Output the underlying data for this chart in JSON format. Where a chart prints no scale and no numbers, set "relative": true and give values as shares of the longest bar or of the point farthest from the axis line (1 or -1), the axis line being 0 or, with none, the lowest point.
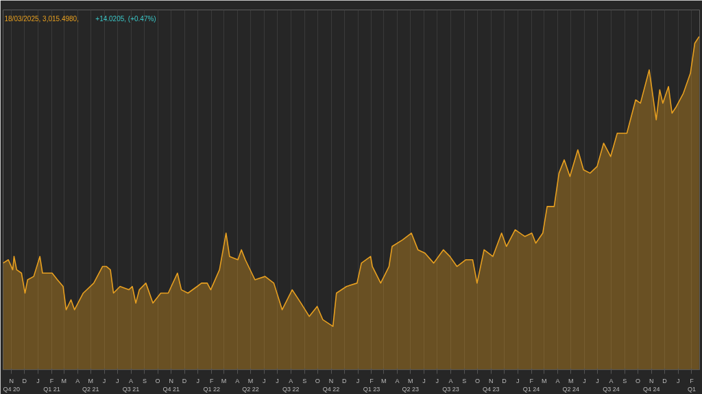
{
  "chart_data": {
    "type": "area",
    "relative": true,
    "color": "#e8a020",
    "grid": "x",
    "annotations": [
      "18/03/2025, 3,015.4980,",
      "+14.0205, (+0.47%)"
    ],
    "xlim": [
      "2020-10-27",
      "2025-03-05"
    ],
    "xticks": [
      {
        "value": "2020-11-15",
        "label": "N\nQ4 20"
      },
      {
        "value": "2020-12-15",
        "label": "D"
      },
      {
        "value": "2021-01-15",
        "label": "J"
      },
      {
        "value": "2021-02-15",
        "label": "F\nQ1 21"
      },
      {
        "value": "2021-03-15",
        "label": "M"
      },
      {
        "value": "2021-04-15",
        "label": "A"
      },
      {
        "value": "2021-05-15",
        "label": "M\nQ2 21"
      },
      {
        "value": "2021-06-15",
        "label": "J"
      },
      {
        "value": "2021-07-15",
        "label": "J"
      },
      {
        "value": "2021-08-15",
        "label": "A\nQ3 21"
      },
      {
        "value": "2021-09-15",
        "label": "S"
      },
      {
        "value": "2021-10-15",
        "label": "O"
      },
      {
        "value": "2021-11-15",
        "label": "N\nQ4 21"
      },
      {
        "value": "2021-12-15",
        "label": "D"
      },
      {
        "value": "2022-01-15",
        "label": "J"
      },
      {
        "value": "2022-02-15",
        "label": "F\nQ1 22"
      },
      {
        "value": "2022-03-15",
        "label": "M"
      },
      {
        "value": "2022-04-15",
        "label": "A"
      },
      {
        "value": "2022-05-15",
        "label": "M\nQ2 22"
      },
      {
        "value": "2022-06-15",
        "label": "J"
      },
      {
        "value": "2022-07-15",
        "label": "J"
      },
      {
        "value": "2022-08-15",
        "label": "A\nQ3 22"
      },
      {
        "value": "2022-09-15",
        "label": "S"
      },
      {
        "value": "2022-10-15",
        "label": "O"
      },
      {
        "value": "2022-11-15",
        "label": "N\nQ4 22"
      },
      {
        "value": "2022-12-15",
        "label": "D"
      },
      {
        "value": "2023-01-15",
        "label": "J"
      },
      {
        "value": "2023-02-15",
        "label": "F\nQ1 23"
      },
      {
        "value": "2023-03-15",
        "label": "M"
      },
      {
        "value": "2023-04-15",
        "label": "A"
      },
      {
        "value": "2023-05-15",
        "label": "M\nQ2 23"
      },
      {
        "value": "2023-06-15",
        "label": "J"
      },
      {
        "value": "2023-07-15",
        "label": "J"
      },
      {
        "value": "2023-08-15",
        "label": "A\nQ3 23"
      },
      {
        "value": "2023-09-15",
        "label": "S"
      },
      {
        "value": "2023-10-15",
        "label": "O"
      },
      {
        "value": "2023-11-15",
        "label": "N\nQ4 23"
      },
      {
        "value": "2023-12-15",
        "label": "D"
      },
      {
        "value": "2024-01-15",
        "label": "J"
      },
      {
        "value": "2024-02-15",
        "label": "F\nQ1 24"
      },
      {
        "value": "2024-03-15",
        "label": "M"
      },
      {
        "value": "2024-04-15",
        "label": "A"
      },
      {
        "value": "2024-05-15",
        "label": "M\nQ2 24"
      },
      {
        "value": "2024-06-15",
        "label": "J"
      },
      {
        "value": "2024-07-15",
        "label": "J"
      },
      {
        "value": "2024-08-15",
        "label": "A\nQ3 24"
      },
      {
        "value": "2024-09-15",
        "label": "S"
      },
      {
        "value": "2024-10-15",
        "label": "O"
      },
      {
        "value": "2024-11-15",
        "label": "N\nQ4 24"
      },
      {
        "value": "2024-12-15",
        "label": "D"
      },
      {
        "value": "2025-01-15",
        "label": "J"
      },
      {
        "value": "2025-02-15",
        "label": "F\nQ1"
      }
    ],
    "x": [
      "2020-10-27",
      "2020-11-08",
      "2020-11-18",
      "2020-11-21",
      "2020-11-27",
      "2020-12-08",
      "2020-12-16",
      "2020-12-22",
      "2021-01-05",
      "2021-01-19",
      "2021-01-25",
      "2021-02-16",
      "2021-02-28",
      "2021-03-13",
      "2021-03-20",
      "2021-03-31",
      "2021-04-08",
      "2021-04-28",
      "2021-05-22",
      "2021-06-11",
      "2021-06-20",
      "2021-06-29",
      "2021-07-06",
      "2021-07-21",
      "2021-08-10",
      "2021-08-18",
      "2021-08-26",
      "2021-09-03",
      "2021-09-18",
      "2021-10-04",
      "2021-10-22",
      "2021-11-08",
      "2021-11-29",
      "2021-12-08",
      "2021-12-23",
      "2022-01-13",
      "2022-01-23",
      "2022-02-05",
      "2022-02-13",
      "2022-03-05",
      "2022-03-20",
      "2022-03-28",
      "2022-04-16",
      "2022-04-24",
      "2022-05-03",
      "2022-05-25",
      "2022-06-17",
      "2022-07-07",
      "2022-07-26",
      "2022-08-18",
      "2022-09-07",
      "2022-09-26",
      "2022-10-14",
      "2022-10-27",
      "2022-11-19",
      "2022-11-27",
      "2022-12-20",
      "2023-01-13",
      "2023-01-23",
      "2023-02-13",
      "2023-02-17",
      "2023-03-08",
      "2023-03-27",
      "2023-04-03",
      "2023-04-27",
      "2023-05-17",
      "2023-06-01",
      "2023-06-17",
      "2023-07-07",
      "2023-07-29",
      "2023-08-13",
      "2023-08-29",
      "2023-09-18",
      "2023-10-04",
      "2023-10-14",
      "2023-10-30",
      "2023-11-19",
      "2023-12-09",
      "2023-12-20",
      "2024-01-09",
      "2024-01-31",
      "2024-02-16",
      "2024-02-25",
      "2024-03-12",
      "2024-03-22",
      "2024-04-07",
      "2024-04-18",
      "2024-04-30",
      "2024-05-13",
      "2024-05-31",
      "2024-06-13",
      "2024-06-28",
      "2024-07-14",
      "2024-07-29",
      "2024-08-14",
      "2024-08-29",
      "2024-09-20",
      "2024-10-10",
      "2024-10-21",
      "2024-11-10",
      "2024-11-26",
      "2024-12-04",
      "2024-12-11",
      "2024-12-24",
      "2025-01-01",
      "2025-01-11",
      "2025-01-27",
      "2025-02-12",
      "2025-02-22",
      "2025-03-04"
    ],
    "values": [
      0.32,
      0.33,
      0.3,
      0.34,
      0.3,
      0.29,
      0.23,
      0.27,
      0.28,
      0.34,
      0.29,
      0.29,
      0.27,
      0.25,
      0.18,
      0.21,
      0.18,
      0.23,
      0.26,
      0.31,
      0.31,
      0.3,
      0.23,
      0.25,
      0.24,
      0.25,
      0.2,
      0.24,
      0.26,
      0.2,
      0.23,
      0.23,
      0.29,
      0.24,
      0.23,
      0.25,
      0.26,
      0.26,
      0.24,
      0.3,
      0.41,
      0.34,
      0.33,
      0.36,
      0.33,
      0.27,
      0.28,
      0.26,
      0.18,
      0.24,
      0.2,
      0.16,
      0.19,
      0.15,
      0.13,
      0.23,
      0.25,
      0.26,
      0.32,
      0.34,
      0.31,
      0.26,
      0.31,
      0.37,
      0.39,
      0.41,
      0.36,
      0.35,
      0.32,
      0.36,
      0.34,
      0.31,
      0.33,
      0.33,
      0.26,
      0.36,
      0.34,
      0.41,
      0.37,
      0.42,
      0.4,
      0.41,
      0.38,
      0.41,
      0.49,
      0.49,
      0.59,
      0.63,
      0.58,
      0.66,
      0.6,
      0.59,
      0.61,
      0.68,
      0.64,
      0.71,
      0.71,
      0.81,
      0.8,
      0.9,
      0.75,
      0.84,
      0.8,
      0.85,
      0.77,
      0.79,
      0.83,
      0.89,
      0.98,
      1.0
    ]
  }
}
